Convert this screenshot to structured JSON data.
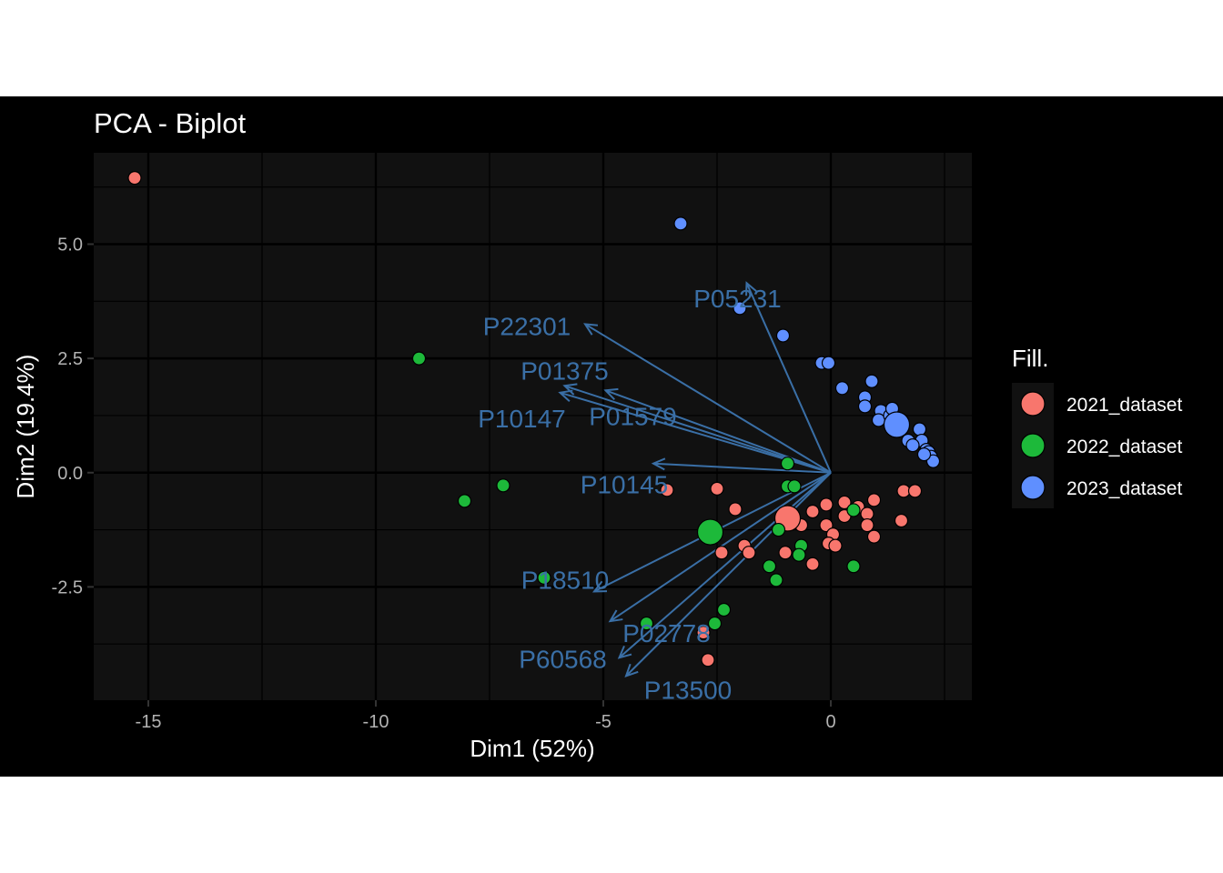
{
  "chart_data": {
    "type": "scatter",
    "title": "PCA - Biplot",
    "xlabel": "Dim1 (52%)",
    "ylabel": "Dim2 (19.4%)",
    "xlim": [
      -16.2,
      3.1
    ],
    "ylim": [
      -4.98,
      7.0
    ],
    "xticks": [
      -15,
      -10,
      -5,
      0
    ],
    "xtick_labels": [
      "-15",
      "-10",
      "-5",
      "0"
    ],
    "yticks": [
      -2.5,
      0,
      2.5,
      5
    ],
    "ytick_labels": [
      "-2.5",
      "0.0",
      "2.5",
      "5.0"
    ],
    "grid": true,
    "legend": {
      "title": "Fill.",
      "placement": "right",
      "entries": [
        "2021_dataset",
        "2022_dataset",
        "2023_dataset"
      ]
    },
    "colors": {
      "2021_dataset": "#f8766d",
      "2022_dataset": "#1db93a",
      "2023_dataset": "#5f8fff",
      "arrow": "#3a6fa6",
      "background": "#000000",
      "panel": "#111111"
    },
    "series": [
      {
        "name": "2021_dataset",
        "points": [
          [
            -15.3,
            6.45
          ],
          [
            -3.6,
            -0.38
          ],
          [
            -2.5,
            -0.35
          ],
          [
            -2.1,
            -0.8
          ],
          [
            -1.9,
            -1.6
          ],
          [
            -2.4,
            -1.75
          ],
          [
            -1.8,
            -1.75
          ],
          [
            -2.8,
            -3.5
          ],
          [
            -2.7,
            -4.1
          ],
          [
            -1.0,
            -1.75
          ],
          [
            -0.4,
            -2.0
          ],
          [
            -0.4,
            -0.85
          ],
          [
            -0.1,
            -0.7
          ],
          [
            -0.1,
            -1.15
          ],
          [
            0.05,
            -1.35
          ],
          [
            0.3,
            -0.65
          ],
          [
            0.3,
            -0.95
          ],
          [
            0.6,
            -0.75
          ],
          [
            0.8,
            -0.9
          ],
          [
            0.8,
            -1.15
          ],
          [
            0.95,
            -1.4
          ],
          [
            0.95,
            -0.6
          ],
          [
            1.6,
            -0.4
          ],
          [
            1.85,
            -0.4
          ],
          [
            1.55,
            -1.05
          ],
          [
            -0.05,
            -1.55
          ],
          [
            0.1,
            -1.6
          ],
          [
            -0.65,
            -1.15
          ]
        ],
        "centroid": [
          -0.95,
          -1.0
        ]
      },
      {
        "name": "2022_dataset",
        "points": [
          [
            -9.05,
            2.5
          ],
          [
            -8.05,
            -0.62
          ],
          [
            -7.2,
            -0.28
          ],
          [
            -6.3,
            -2.3
          ],
          [
            -4.05,
            -3.3
          ],
          [
            -2.35,
            -3.0
          ],
          [
            -2.55,
            -3.3
          ],
          [
            -1.35,
            -2.05
          ],
          [
            -1.2,
            -2.35
          ],
          [
            -0.95,
            0.2
          ],
          [
            -0.95,
            -0.3
          ],
          [
            -0.8,
            -0.3
          ],
          [
            -0.65,
            -1.6
          ],
          [
            -0.7,
            -1.8
          ],
          [
            -1.15,
            -1.25
          ],
          [
            0.5,
            -2.05
          ],
          [
            0.5,
            -0.82
          ]
        ],
        "centroid": [
          -2.65,
          -1.3
        ]
      },
      {
        "name": "2023_dataset",
        "points": [
          [
            -3.3,
            5.45
          ],
          [
            -2.0,
            3.6
          ],
          [
            -1.05,
            3.0
          ],
          [
            -0.2,
            2.4
          ],
          [
            -0.05,
            2.4
          ],
          [
            0.25,
            1.85
          ],
          [
            0.75,
            1.65
          ],
          [
            0.75,
            1.45
          ],
          [
            0.9,
            2.0
          ],
          [
            1.1,
            1.35
          ],
          [
            1.05,
            1.15
          ],
          [
            1.3,
            1.25
          ],
          [
            1.35,
            1.4
          ],
          [
            1.5,
            1.1
          ],
          [
            1.7,
            0.7
          ],
          [
            1.95,
            0.95
          ],
          [
            2.0,
            0.7
          ],
          [
            2.1,
            0.5
          ],
          [
            2.15,
            0.45
          ],
          [
            2.2,
            0.35
          ],
          [
            2.25,
            0.25
          ],
          [
            2.05,
            0.4
          ],
          [
            1.8,
            0.6
          ]
        ],
        "centroid": [
          1.45,
          1.05
        ]
      }
    ],
    "loadings": [
      {
        "label": "P05231",
        "x": -1.85,
        "y": 4.15
      },
      {
        "label": "P22301",
        "x": -5.4,
        "y": 3.25
      },
      {
        "label": "P01375",
        "x": -5.85,
        "y": 1.9
      },
      {
        "label": "P10147",
        "x": -5.95,
        "y": 1.75
      },
      {
        "label": "P01579",
        "x": -4.95,
        "y": 1.8
      },
      {
        "label": "P10145",
        "x": -3.9,
        "y": 0.2
      },
      {
        "label": "P18510",
        "x": -5.2,
        "y": -2.6
      },
      {
        "label": "P02778",
        "x": -4.85,
        "y": -3.25
      },
      {
        "label": "P60568",
        "x": -4.65,
        "y": -4.05
      },
      {
        "label": "P13500",
        "x": -4.5,
        "y": -4.45
      }
    ]
  }
}
